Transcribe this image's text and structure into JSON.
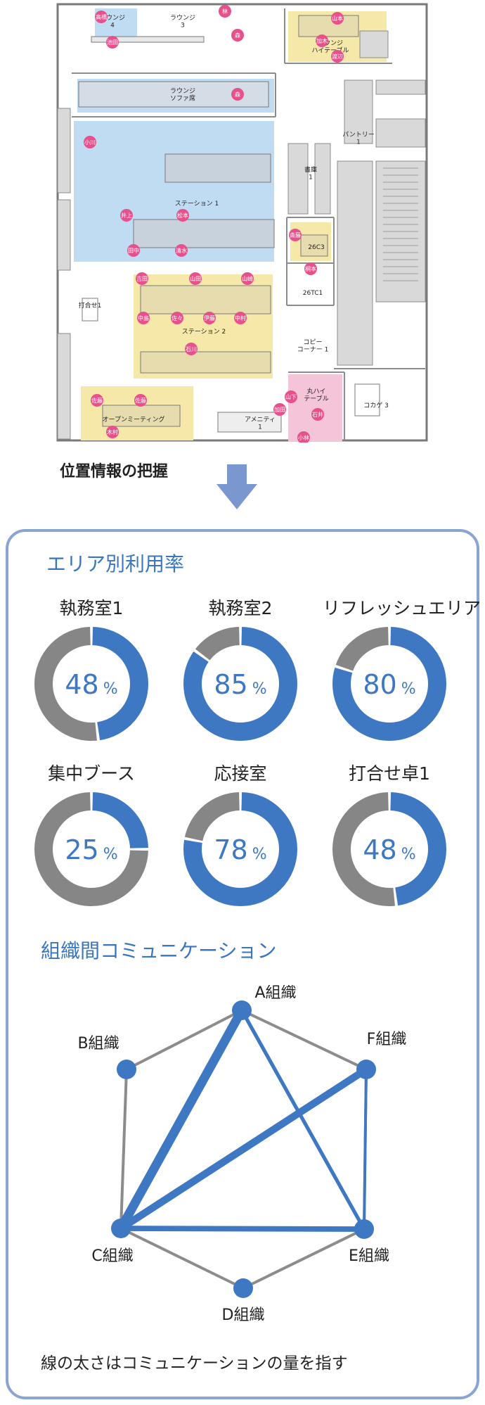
{
  "floor_plan": {
    "rooms": [
      {
        "id": "lounge4",
        "label": "ラウンジ\n4"
      },
      {
        "id": "lounge3",
        "label": "ラウンジ\n3"
      },
      {
        "id": "lounge_high",
        "label": "ラウンジ\nハイテーブル"
      },
      {
        "id": "lounge_sofa",
        "label": "ラウンジ\nソファ席"
      },
      {
        "id": "pantry",
        "label": "パントリー\n1"
      },
      {
        "id": "storage",
        "label": "書庫\n1"
      },
      {
        "id": "station1",
        "label": "ステーション 1"
      },
      {
        "id": "r26c3",
        "label": "26C3"
      },
      {
        "id": "r26tc1",
        "label": "26TC1"
      },
      {
        "id": "meeting1",
        "label": "打合せ1"
      },
      {
        "id": "station2",
        "label": "ステーション 2"
      },
      {
        "id": "copy",
        "label": "コピー\nコーナー 1"
      },
      {
        "id": "maru_high",
        "label": "丸ハイ\nテーブル"
      },
      {
        "id": "kokage",
        "label": "コカゲ 3"
      },
      {
        "id": "open_meeting",
        "label": "オープンミーティング"
      },
      {
        "id": "amenity",
        "label": "アメニティ\n1"
      }
    ],
    "people": [
      {
        "id": "p1",
        "label": "高橋"
      },
      {
        "id": "p2",
        "label": "池田"
      },
      {
        "id": "p3",
        "label": "林"
      },
      {
        "id": "p4",
        "label": "森"
      },
      {
        "id": "p5",
        "label": "山本"
      },
      {
        "id": "p6",
        "label": "加木"
      },
      {
        "id": "p7",
        "label": "渡辺"
      },
      {
        "id": "p8",
        "label": "森"
      },
      {
        "id": "p9",
        "label": "小川"
      },
      {
        "id": "p10",
        "label": "井上"
      },
      {
        "id": "p11",
        "label": "松本"
      },
      {
        "id": "p12",
        "label": "田中"
      },
      {
        "id": "p13",
        "label": "清水"
      },
      {
        "id": "p14",
        "label": "斎藤"
      },
      {
        "id": "p15",
        "label": "桐本"
      },
      {
        "id": "p16",
        "label": "吉田"
      },
      {
        "id": "p17",
        "label": "山田"
      },
      {
        "id": "p18",
        "label": "山崎"
      },
      {
        "id": "p19",
        "label": "中島"
      },
      {
        "id": "p20",
        "label": "佐々"
      },
      {
        "id": "p21",
        "label": "伊藤"
      },
      {
        "id": "p22",
        "label": "中村"
      },
      {
        "id": "p23",
        "label": "石川"
      },
      {
        "id": "p24",
        "label": "山下"
      },
      {
        "id": "p25",
        "label": "加田"
      },
      {
        "id": "p26",
        "label": "石井"
      },
      {
        "id": "p27",
        "label": "小林"
      },
      {
        "id": "p28",
        "label": "佐藤"
      },
      {
        "id": "p29",
        "label": "佐藤"
      },
      {
        "id": "p30",
        "label": "木村"
      }
    ]
  },
  "heading": "位置情報の把握",
  "utilization": {
    "title": "エリア別利用率",
    "unit": "%",
    "areas": [
      {
        "name": "執務室1",
        "value": 48
      },
      {
        "name": "執務室2",
        "value": 85
      },
      {
        "name": "リフレッシュエリア",
        "value": 80
      },
      {
        "name": "集中ブース",
        "value": 25
      },
      {
        "name": "応接室",
        "value": 78
      },
      {
        "name": "打合せ卓1",
        "value": 48
      }
    ],
    "colors": {
      "used": "#3f78c2",
      "free": "#868686"
    }
  },
  "communication": {
    "title": "組織間コミュニケーション",
    "nodes": [
      {
        "id": "A",
        "label": "A組織"
      },
      {
        "id": "F",
        "label": "F組織"
      },
      {
        "id": "E",
        "label": "E組織"
      },
      {
        "id": "D",
        "label": "D組織"
      },
      {
        "id": "C",
        "label": "C組織"
      },
      {
        "id": "B",
        "label": "B組織"
      }
    ],
    "outline_edges": [
      [
        "A",
        "F"
      ],
      [
        "F",
        "E"
      ],
      [
        "E",
        "D"
      ],
      [
        "D",
        "C"
      ],
      [
        "C",
        "B"
      ],
      [
        "B",
        "A"
      ]
    ],
    "links": [
      {
        "from": "A",
        "to": "C",
        "weight": 5
      },
      {
        "from": "C",
        "to": "F",
        "weight": 4
      },
      {
        "from": "C",
        "to": "E",
        "weight": 3
      },
      {
        "from": "A",
        "to": "E",
        "weight": 2
      },
      {
        "from": "F",
        "to": "E",
        "weight": 1.5
      }
    ],
    "footnote": "線の太さはコミュニケーションの量を指す",
    "colors": {
      "link": "#3f78c2",
      "outline": "#8c8c8c",
      "node": "#3f78c2"
    }
  }
}
